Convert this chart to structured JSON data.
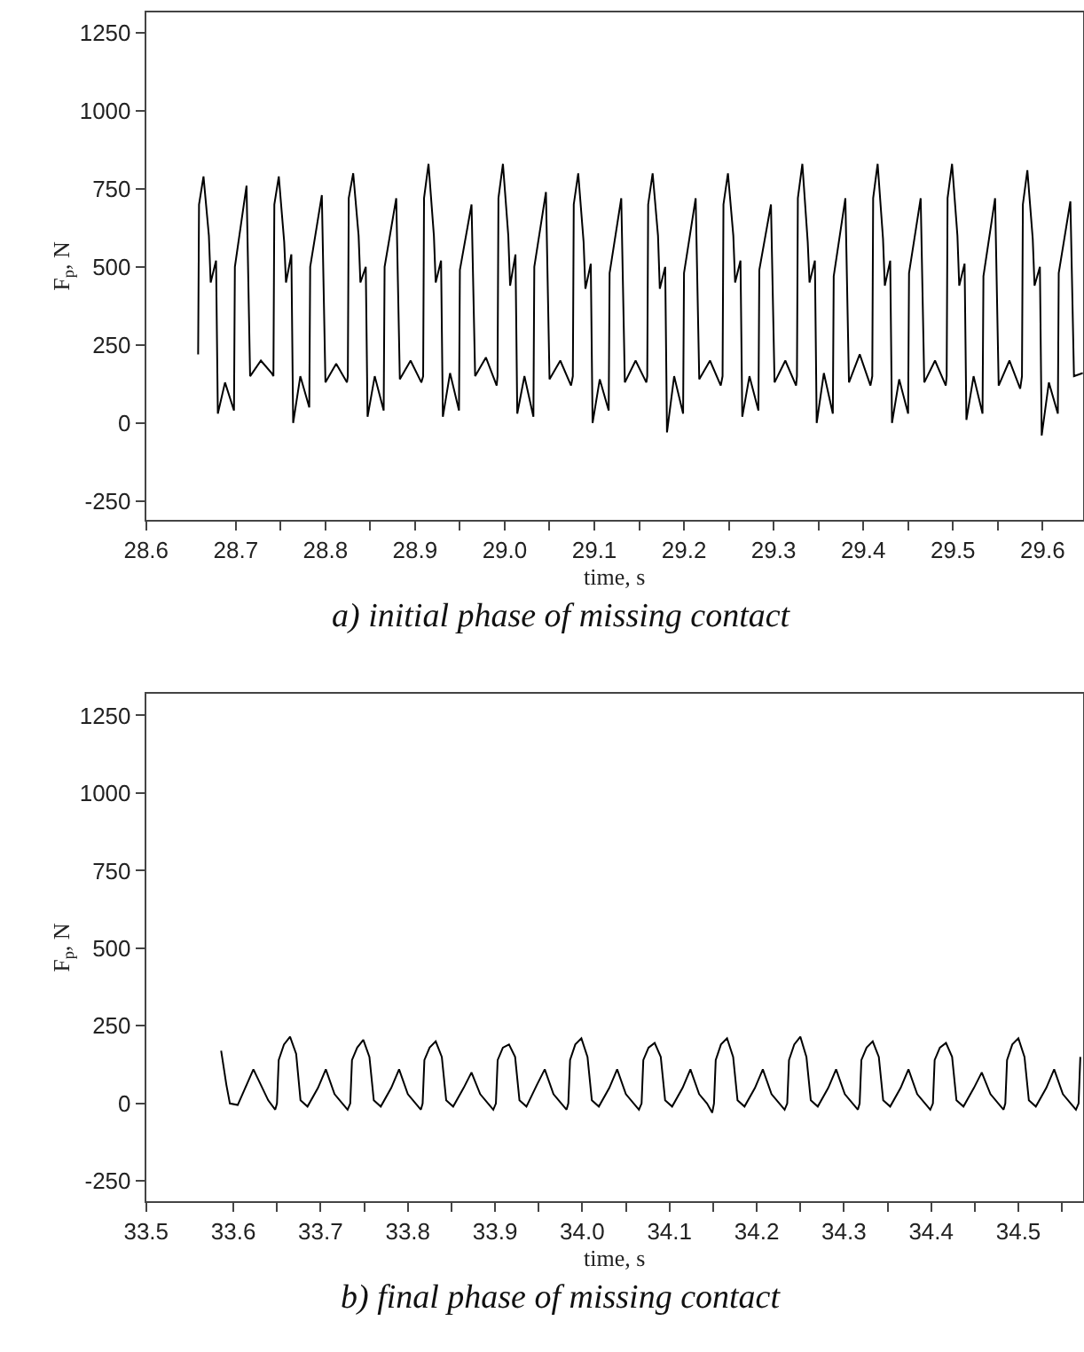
{
  "chart_data": [
    {
      "type": "line",
      "annotations": [
        "a) initial phase of missing contact"
      ],
      "xlabel": "time, s",
      "ylabel": "F$_{p}$, N",
      "xlim": [
        28.6,
        29.645
      ],
      "ylim": [
        -310,
        1315
      ],
      "xticks": [
        28.6,
        28.7,
        28.8,
        28.9,
        {
          "value": 29.0,
          "label": "29.0"
        },
        29.1,
        29.2,
        29.3,
        29.4,
        29.5,
        29.6,
        {
          "value": 28.75,
          "label": null
        },
        {
          "value": 28.85,
          "label": null
        },
        {
          "value": 28.95,
          "label": null
        },
        {
          "value": 29.05,
          "label": null
        },
        {
          "value": 29.15,
          "label": null
        },
        {
          "value": 29.25,
          "label": null
        },
        {
          "value": 29.35,
          "label": null
        },
        {
          "value": 29.45,
          "label": null
        },
        {
          "value": 29.55,
          "label": null
        }
      ],
      "yticks": [
        -250,
        0,
        250,
        500,
        750,
        1000,
        1250
      ],
      "grid": false,
      "series": [
        {
          "color": "#000000",
          "x": [
            28.658,
            28.659,
            28.664,
            28.67,
            28.672,
            28.678,
            28.68,
            28.688,
            28.698,
            28.699,
            28.712,
            28.716,
            28.728,
            28.74,
            28.742,
            28.743,
            28.748,
            28.754,
            28.756,
            28.762,
            28.764,
            28.772,
            28.782,
            28.783,
            28.796,
            28.8,
            28.812,
            28.824,
            28.825,
            28.826,
            28.831,
            28.837,
            28.839,
            28.845,
            28.847,
            28.855,
            28.865,
            28.866,
            28.879,
            28.883,
            28.895,
            28.907,
            28.909,
            28.91,
            28.915,
            28.921,
            28.923,
            28.929,
            28.931,
            28.939,
            28.949,
            28.95,
            28.963,
            28.967,
            28.979,
            28.991,
            28.992,
            28.993,
            28.998,
            29.004,
            29.006,
            29.012,
            29.014,
            29.022,
            29.032,
            29.033,
            29.046,
            29.05,
            29.062,
            29.074,
            29.076,
            29.077,
            29.082,
            29.088,
            29.09,
            29.096,
            29.098,
            29.106,
            29.116,
            29.117,
            29.13,
            29.134,
            29.146,
            29.158,
            29.159,
            29.16,
            29.165,
            29.171,
            29.173,
            29.179,
            29.181,
            29.189,
            29.199,
            29.2,
            29.213,
            29.217,
            29.229,
            29.241,
            29.243,
            29.244,
            29.249,
            29.255,
            29.257,
            29.263,
            29.265,
            29.273,
            29.283,
            29.284,
            29.297,
            29.301,
            29.313,
            29.325,
            29.326,
            29.327,
            29.332,
            29.338,
            29.34,
            29.346,
            29.348,
            29.356,
            29.366,
            29.367,
            29.38,
            29.384,
            29.396,
            29.408,
            29.41,
            29.411,
            29.416,
            29.422,
            29.424,
            29.43,
            29.432,
            29.44,
            29.45,
            29.451,
            29.464,
            29.468,
            29.48,
            29.492,
            29.493,
            29.494,
            29.499,
            29.505,
            29.507,
            29.513,
            29.515,
            29.523,
            29.533,
            29.534,
            29.547,
            29.551,
            29.563,
            29.575,
            29.577,
            29.578,
            29.583,
            29.589,
            29.591,
            29.597,
            29.599,
            29.607,
            29.617,
            29.618,
            29.631,
            29.635,
            29.645
          ],
          "values": [
            220,
            700,
            790,
            600,
            450,
            520,
            30,
            130,
            40,
            500,
            760,
            150,
            200,
            160,
            150,
            700,
            790,
            580,
            450,
            540,
            0,
            150,
            50,
            500,
            730,
            130,
            190,
            130,
            150,
            720,
            800,
            600,
            450,
            500,
            20,
            150,
            40,
            500,
            720,
            140,
            200,
            130,
            150,
            720,
            830,
            600,
            450,
            520,
            20,
            160,
            40,
            490,
            700,
            150,
            210,
            120,
            150,
            720,
            830,
            600,
            440,
            540,
            30,
            150,
            20,
            500,
            740,
            140,
            200,
            120,
            150,
            700,
            800,
            580,
            430,
            510,
            0,
            140,
            40,
            480,
            720,
            130,
            200,
            130,
            150,
            700,
            800,
            600,
            430,
            500,
            -30,
            150,
            30,
            480,
            720,
            140,
            200,
            120,
            150,
            700,
            800,
            600,
            450,
            520,
            20,
            150,
            40,
            490,
            700,
            130,
            200,
            120,
            150,
            720,
            830,
            580,
            450,
            520,
            0,
            160,
            30,
            470,
            720,
            130,
            220,
            120,
            150,
            720,
            830,
            590,
            440,
            520,
            0,
            140,
            30,
            480,
            720,
            130,
            200,
            120,
            150,
            720,
            830,
            600,
            440,
            510,
            10,
            150,
            30,
            470,
            720,
            120,
            200,
            110,
            150,
            700,
            810,
            590,
            440,
            500,
            -40,
            130,
            30,
            480,
            710,
            150,
            160
          ]
        }
      ]
    },
    {
      "type": "line",
      "annotations": [
        "b) final phase of missing contact"
      ],
      "xlabel": "time, s",
      "ylabel": "F$_{p}$, N",
      "xlim": [
        33.5,
        34.574
      ],
      "ylim": [
        -315,
        1320
      ],
      "xticks": [
        33.5,
        33.6,
        33.7,
        33.8,
        33.9,
        {
          "value": 34.0,
          "label": "34.0"
        },
        34.1,
        34.2,
        34.3,
        34.4,
        34.5,
        {
          "value": 33.65,
          "label": null
        },
        {
          "value": 33.75,
          "label": null
        },
        {
          "value": 33.85,
          "label": null
        },
        {
          "value": 33.95,
          "label": null
        },
        {
          "value": 34.05,
          "label": null
        },
        {
          "value": 34.15,
          "label": null
        },
        {
          "value": 34.25,
          "label": null
        },
        {
          "value": 34.35,
          "label": null
        },
        {
          "value": 34.45,
          "label": null
        },
        {
          "value": 34.55,
          "label": null
        }
      ],
      "yticks": [
        -250,
        0,
        250,
        500,
        750,
        1000,
        1250
      ],
      "grid": false,
      "series": [
        {
          "color": "#000000",
          "x": [
            33.586,
            33.592,
            33.596,
            33.605,
            33.623,
            33.64,
            33.648,
            33.65,
            33.652,
            33.658,
            33.665,
            33.672,
            33.677,
            33.685,
            33.697,
            33.706,
            33.716,
            33.725,
            33.731,
            33.734,
            33.736,
            33.742,
            33.749,
            33.756,
            33.761,
            33.769,
            33.781,
            33.79,
            33.8,
            33.809,
            33.815,
            33.817,
            33.819,
            33.825,
            33.832,
            33.839,
            33.844,
            33.852,
            33.864,
            33.873,
            33.883,
            33.892,
            33.898,
            33.901,
            33.903,
            33.909,
            33.916,
            33.923,
            33.928,
            33.936,
            33.948,
            33.957,
            33.967,
            33.976,
            33.982,
            33.984,
            33.986,
            33.992,
            33.999,
            34.006,
            34.011,
            34.019,
            34.031,
            34.04,
            34.05,
            34.059,
            34.065,
            34.068,
            34.07,
            34.076,
            34.083,
            34.09,
            34.095,
            34.103,
            34.115,
            34.124,
            34.134,
            34.143,
            34.149,
            34.151,
            34.153,
            34.159,
            34.166,
            34.173,
            34.178,
            34.186,
            34.198,
            34.207,
            34.217,
            34.226,
            34.232,
            34.235,
            34.237,
            34.243,
            34.25,
            34.257,
            34.262,
            34.27,
            34.282,
            34.291,
            34.301,
            34.31,
            34.316,
            34.318,
            34.32,
            34.326,
            34.333,
            34.34,
            34.345,
            34.353,
            34.365,
            34.374,
            34.384,
            34.393,
            34.399,
            34.402,
            34.404,
            34.41,
            34.417,
            34.424,
            34.429,
            34.437,
            34.449,
            34.458,
            34.468,
            34.477,
            34.483,
            34.485,
            34.487,
            34.493,
            34.5,
            34.507,
            34.512,
            34.52,
            34.532,
            34.541,
            34.551,
            34.56,
            34.566,
            34.569,
            34.571
          ],
          "values": [
            170,
            60,
            0,
            -5,
            110,
            10,
            -20,
            0,
            140,
            190,
            215,
            160,
            10,
            -10,
            50,
            110,
            30,
            0,
            -20,
            0,
            140,
            180,
            205,
            150,
            10,
            -10,
            50,
            110,
            30,
            0,
            -20,
            0,
            140,
            180,
            200,
            150,
            10,
            -10,
            50,
            100,
            30,
            0,
            -20,
            0,
            140,
            180,
            190,
            150,
            10,
            -10,
            60,
            110,
            30,
            0,
            -20,
            0,
            140,
            190,
            210,
            150,
            10,
            -10,
            50,
            110,
            30,
            0,
            -20,
            0,
            140,
            180,
            195,
            150,
            10,
            -10,
            50,
            110,
            30,
            0,
            -30,
            0,
            140,
            190,
            210,
            150,
            10,
            -10,
            50,
            110,
            30,
            0,
            -20,
            0,
            140,
            190,
            215,
            150,
            10,
            -10,
            50,
            110,
            30,
            0,
            -20,
            0,
            140,
            180,
            200,
            150,
            10,
            -10,
            50,
            110,
            30,
            0,
            -20,
            0,
            140,
            180,
            195,
            150,
            10,
            -10,
            50,
            100,
            30,
            0,
            -20,
            0,
            140,
            190,
            210,
            150,
            10,
            -10,
            50,
            110,
            30,
            0,
            -20,
            0,
            150
          ]
        }
      ]
    }
  ]
}
